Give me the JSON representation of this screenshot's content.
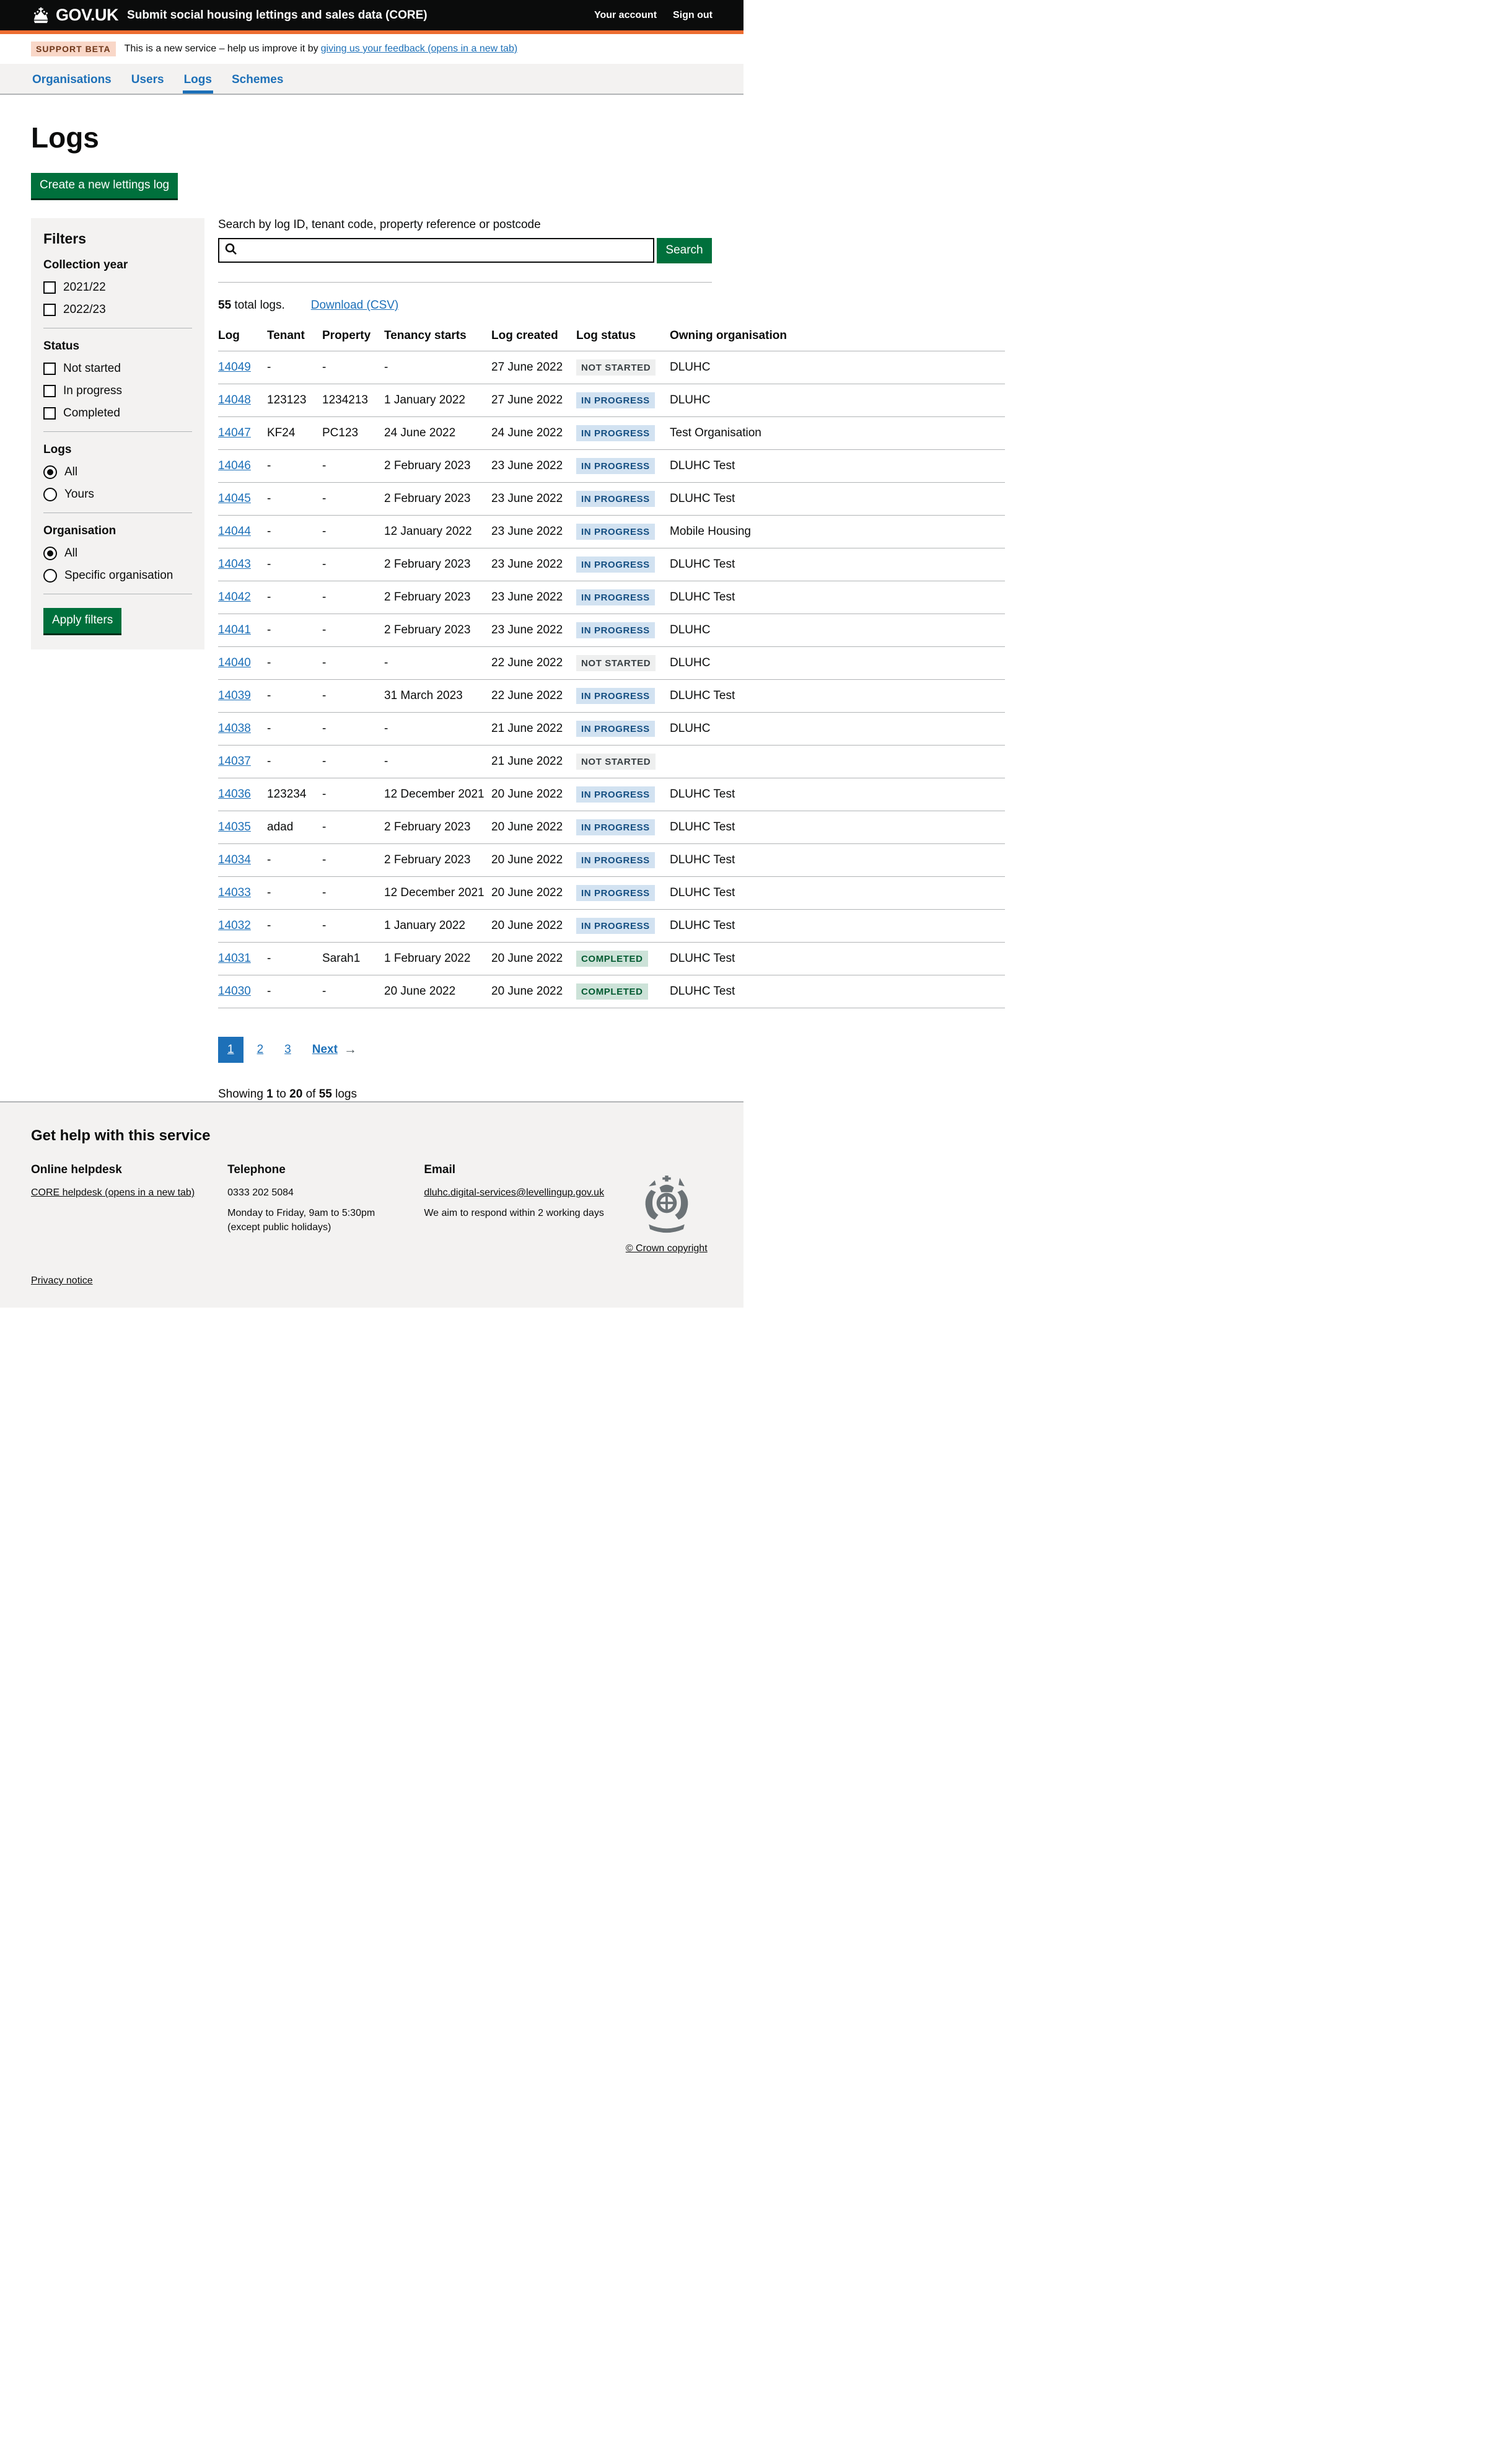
{
  "header": {
    "logo": "GOV.UK",
    "service": "Submit social housing lettings and sales data (CORE)",
    "account_link": "Your account",
    "signout_link": "Sign out"
  },
  "beta": {
    "tag": "SUPPORT BETA",
    "text_before": "This is a new service – help us improve it by",
    "link": "giving us your feedback (opens in a new tab)"
  },
  "nav": {
    "items": [
      {
        "label": "Organisations",
        "current": false
      },
      {
        "label": "Users",
        "current": false
      },
      {
        "label": "Logs",
        "current": true
      },
      {
        "label": "Schemes",
        "current": false
      }
    ]
  },
  "page": {
    "title": "Logs",
    "create_button": "Create a new lettings log"
  },
  "filters": {
    "title": "Filters",
    "apply_label": "Apply filters",
    "groups": [
      {
        "title": "Collection year",
        "type": "checkbox",
        "options": [
          {
            "label": "2021/22",
            "checked": false
          },
          {
            "label": "2022/23",
            "checked": false
          }
        ]
      },
      {
        "title": "Status",
        "type": "checkbox",
        "options": [
          {
            "label": "Not started",
            "checked": false
          },
          {
            "label": "In progress",
            "checked": false
          },
          {
            "label": "Completed",
            "checked": false
          }
        ]
      },
      {
        "title": "Logs",
        "type": "radio",
        "options": [
          {
            "label": "All",
            "checked": true
          },
          {
            "label": "Yours",
            "checked": false
          }
        ]
      },
      {
        "title": "Organisation",
        "type": "radio",
        "options": [
          {
            "label": "All",
            "checked": true
          },
          {
            "label": "Specific organisation",
            "checked": false
          }
        ]
      }
    ]
  },
  "search": {
    "label": "Search by log ID, tenant code, property reference or postcode",
    "value": "",
    "button": "Search"
  },
  "results": {
    "count": "55",
    "count_suffix": " total logs.",
    "download": "Download (CSV)"
  },
  "table": {
    "columns": [
      "Log",
      "Tenant",
      "Property",
      "Tenancy starts",
      "Log created",
      "Log status",
      "Owning organisation"
    ],
    "rows": [
      {
        "log": "14049",
        "tenant": "-",
        "property": "-",
        "tenancy_starts": "-",
        "log_created": "27 June 2022",
        "status": "NOT STARTED",
        "status_type": "grey",
        "owning_org": "DLUHC"
      },
      {
        "log": "14048",
        "tenant": "123123",
        "property": "1234213",
        "tenancy_starts": "1 January 2022",
        "log_created": "27 June 2022",
        "status": "IN PROGRESS",
        "status_type": "blue",
        "owning_org": "DLUHC"
      },
      {
        "log": "14047",
        "tenant": "KF24",
        "property": "PC123",
        "tenancy_starts": "24 June 2022",
        "log_created": "24 June 2022",
        "status": "IN PROGRESS",
        "status_type": "blue",
        "owning_org": "Test Organisation"
      },
      {
        "log": "14046",
        "tenant": "-",
        "property": "-",
        "tenancy_starts": "2 February 2023",
        "log_created": "23 June 2022",
        "status": "IN PROGRESS",
        "status_type": "blue",
        "owning_org": "DLUHC Test"
      },
      {
        "log": "14045",
        "tenant": "-",
        "property": "-",
        "tenancy_starts": "2 February 2023",
        "log_created": "23 June 2022",
        "status": "IN PROGRESS",
        "status_type": "blue",
        "owning_org": "DLUHC Test"
      },
      {
        "log": "14044",
        "tenant": "-",
        "property": "-",
        "tenancy_starts": "12 January 2022",
        "log_created": "23 June 2022",
        "status": "IN PROGRESS",
        "status_type": "blue",
        "owning_org": "Mobile Housing"
      },
      {
        "log": "14043",
        "tenant": "-",
        "property": "-",
        "tenancy_starts": "2 February 2023",
        "log_created": "23 June 2022",
        "status": "IN PROGRESS",
        "status_type": "blue",
        "owning_org": "DLUHC Test"
      },
      {
        "log": "14042",
        "tenant": "-",
        "property": "-",
        "tenancy_starts": "2 February 2023",
        "log_created": "23 June 2022",
        "status": "IN PROGRESS",
        "status_type": "blue",
        "owning_org": "DLUHC Test"
      },
      {
        "log": "14041",
        "tenant": "-",
        "property": "-",
        "tenancy_starts": "2 February 2023",
        "log_created": "23 June 2022",
        "status": "IN PROGRESS",
        "status_type": "blue",
        "owning_org": "DLUHC"
      },
      {
        "log": "14040",
        "tenant": "-",
        "property": "-",
        "tenancy_starts": "-",
        "log_created": "22 June 2022",
        "status": "NOT STARTED",
        "status_type": "grey",
        "owning_org": "DLUHC"
      },
      {
        "log": "14039",
        "tenant": "-",
        "property": "-",
        "tenancy_starts": "31 March 2023",
        "log_created": "22 June 2022",
        "status": "IN PROGRESS",
        "status_type": "blue",
        "owning_org": "DLUHC Test"
      },
      {
        "log": "14038",
        "tenant": "-",
        "property": "-",
        "tenancy_starts": "-",
        "log_created": "21 June 2022",
        "status": "IN PROGRESS",
        "status_type": "blue",
        "owning_org": "DLUHC"
      },
      {
        "log": "14037",
        "tenant": "-",
        "property": "-",
        "tenancy_starts": "-",
        "log_created": "21 June 2022",
        "status": "NOT STARTED",
        "status_type": "grey",
        "owning_org": ""
      },
      {
        "log": "14036",
        "tenant": "123234",
        "property": "-",
        "tenancy_starts": "12 December 2021",
        "log_created": "20 June 2022",
        "status": "IN PROGRESS",
        "status_type": "blue",
        "owning_org": "DLUHC Test"
      },
      {
        "log": "14035",
        "tenant": "adad",
        "property": "-",
        "tenancy_starts": "2 February 2023",
        "log_created": "20 June 2022",
        "status": "IN PROGRESS",
        "status_type": "blue",
        "owning_org": "DLUHC Test"
      },
      {
        "log": "14034",
        "tenant": "-",
        "property": "-",
        "tenancy_starts": "2 February 2023",
        "log_created": "20 June 2022",
        "status": "IN PROGRESS",
        "status_type": "blue",
        "owning_org": "DLUHC Test"
      },
      {
        "log": "14033",
        "tenant": "-",
        "property": "-",
        "tenancy_starts": "12 December 2021",
        "log_created": "20 June 2022",
        "status": "IN PROGRESS",
        "status_type": "blue",
        "owning_org": "DLUHC Test"
      },
      {
        "log": "14032",
        "tenant": "-",
        "property": "-",
        "tenancy_starts": "1 January 2022",
        "log_created": "20 June 2022",
        "status": "IN PROGRESS",
        "status_type": "blue",
        "owning_org": "DLUHC Test"
      },
      {
        "log": "14031",
        "tenant": "-",
        "property": "Sarah1",
        "tenancy_starts": "1 February 2022",
        "log_created": "20 June 2022",
        "status": "COMPLETED",
        "status_type": "green",
        "owning_org": "DLUHC Test"
      },
      {
        "log": "14030",
        "tenant": "-",
        "property": "-",
        "tenancy_starts": "20 June 2022",
        "log_created": "20 June 2022",
        "status": "COMPLETED",
        "status_type": "green",
        "owning_org": "DLUHC Test"
      }
    ]
  },
  "pagination": {
    "current": "1",
    "pages": [
      "2",
      "3"
    ],
    "next": "Next",
    "arrow": "→"
  },
  "showing": {
    "prefix": "Showing ",
    "from": "1",
    "to_word": " to ",
    "to": "20",
    "of_word": " of ",
    "total": "55",
    "suffix": " logs"
  },
  "footer": {
    "help_title": "Get help with this service",
    "online": {
      "title": "Online helpdesk",
      "link": "CORE helpdesk (opens in a new tab)"
    },
    "telephone": {
      "title": "Telephone",
      "number": "0333 202 5084",
      "hours1": "Monday to Friday, 9am to 5:30pm",
      "hours2": "(except public holidays)"
    },
    "email": {
      "title": "Email",
      "address": "dluhc.digital-services@levellingup.gov.uk",
      "note": "We aim to respond within 2 working days"
    },
    "privacy": "Privacy notice",
    "copyright": "© Crown copyright"
  },
  "colors": {
    "header_black": "#0b0c0c",
    "header_border_orange": "#ed6d31",
    "panel_grey": "#f3f2f1",
    "border_grey": "#b1b4b6",
    "link_blue": "#1d70b8",
    "button_green": "#00703c",
    "tag_blue_bg": "#d2e2f1",
    "tag_blue_text": "#144e81",
    "tag_grey_bg": "#eeefef",
    "tag_grey_text": "#383f43",
    "tag_green_bg": "#cce2d8",
    "tag_green_text": "#005a30",
    "beta_tag_bg": "#f9d7c8",
    "beta_tag_text": "#6e3619"
  },
  "icons": {
    "crown": "crown-icon",
    "search": "search-icon",
    "next_arrow": "arrow-right-icon",
    "crest": "royal-coat-of-arms"
  }
}
